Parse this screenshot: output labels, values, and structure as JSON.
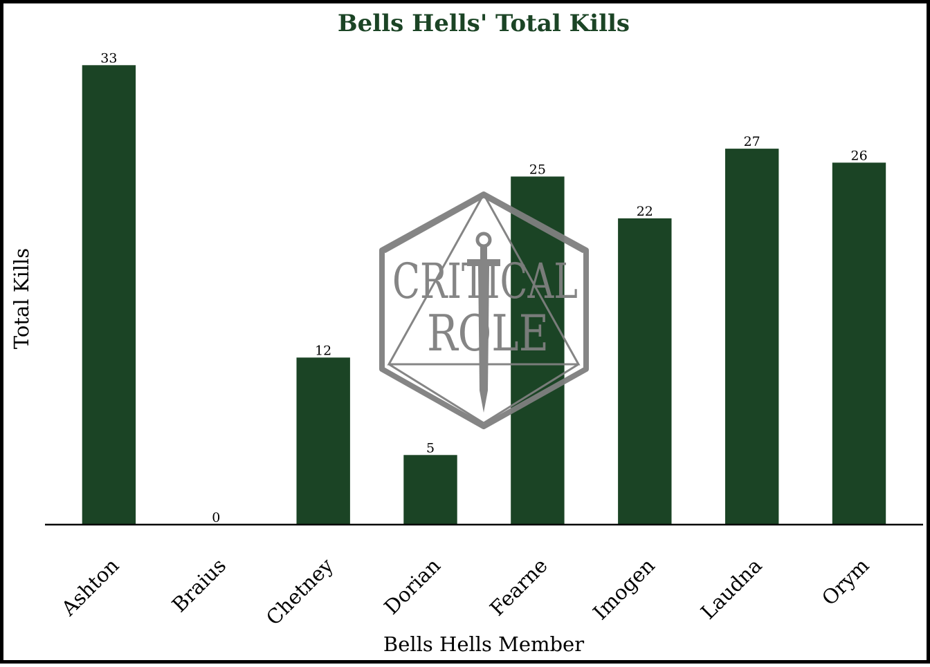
{
  "chart_data": {
    "type": "bar",
    "title": "Bells Hells' Total Kills",
    "xlabel": "Bells Hells Member",
    "ylabel": "Total Kills",
    "categories": [
      "Ashton",
      "Braius",
      "Chetney",
      "Dorian",
      "Fearne",
      "Imogen",
      "Laudna",
      "Orym"
    ],
    "values": [
      33,
      0,
      12,
      5,
      25,
      22,
      27,
      26
    ],
    "ylim": [
      0,
      35
    ],
    "grid": false,
    "legend": "none",
    "bar_color": "#1b4425",
    "title_color": "#1b4425",
    "data_labels": true
  },
  "watermark": {
    "icon": "critical-role-logo-icon",
    "line1": "CRITICAL",
    "line2": "ROLE",
    "color": "#7f7f7f"
  }
}
